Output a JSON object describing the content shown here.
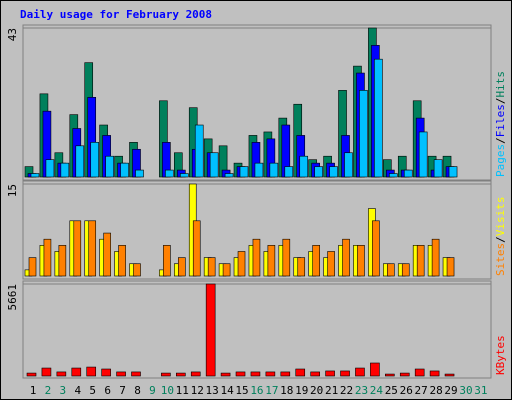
{
  "chart_data": [
    {
      "type": "bar",
      "title": "Daily usage for February 2008",
      "label_separator": "/",
      "ylim": [
        0,
        43
      ],
      "yticks": [
        43
      ],
      "series": [
        {
          "name": "Hits",
          "color": "#00805c",
          "values": [
            3,
            24,
            7,
            18,
            33,
            15,
            6,
            10,
            0,
            22,
            7,
            20,
            11,
            9,
            4,
            12,
            13,
            17,
            21,
            5,
            6,
            25,
            32,
            43,
            5,
            6,
            22,
            6,
            6,
            null,
            null
          ]
        },
        {
          "name": "Files",
          "color": "#0000ff",
          "values": [
            1,
            19,
            4,
            14,
            23,
            12,
            4,
            8,
            0,
            10,
            2,
            8,
            7,
            2,
            3,
            10,
            11,
            15,
            12,
            4,
            4,
            12,
            30,
            38,
            2,
            2,
            17,
            2,
            3,
            null,
            null
          ]
        },
        {
          "name": "Pages",
          "color": "#00c0ff",
          "values": [
            1,
            5,
            4,
            9,
            10,
            6,
            4,
            2,
            0,
            2,
            1,
            15,
            7,
            1,
            3,
            4,
            4,
            3,
            6,
            3,
            3,
            7,
            25,
            34,
            1,
            2,
            13,
            5,
            3,
            null,
            null
          ]
        }
      ]
    },
    {
      "type": "bar",
      "ylim": [
        0,
        15
      ],
      "yticks": [
        15
      ],
      "series": [
        {
          "name": "Visits",
          "color": "#ffff00",
          "values": [
            1,
            5,
            4,
            9,
            9,
            6,
            4,
            2,
            0,
            1,
            2,
            15,
            3,
            2,
            3,
            5,
            4,
            5,
            3,
            4,
            3,
            5,
            5,
            11,
            2,
            2,
            5,
            5,
            3,
            null,
            null
          ]
        },
        {
          "name": "Sites",
          "color": "#ff8000",
          "values": [
            3,
            6,
            5,
            9,
            9,
            7,
            5,
            2,
            0,
            5,
            3,
            9,
            3,
            2,
            4,
            6,
            5,
            6,
            3,
            5,
            4,
            6,
            5,
            9,
            2,
            2,
            5,
            6,
            3,
            null,
            null
          ]
        }
      ]
    },
    {
      "type": "bar",
      "ylim": [
        0,
        5661
      ],
      "yticks": [
        5661
      ],
      "categories": [
        "1",
        "2",
        "3",
        "4",
        "5",
        "6",
        "7",
        "8",
        "9",
        "10",
        "11",
        "12",
        "13",
        "14",
        "15",
        "16",
        "17",
        "18",
        "19",
        "20",
        "21",
        "22",
        "23",
        "24",
        "25",
        "26",
        "27",
        "28",
        "29",
        "30",
        "31"
      ],
      "category_colors": [
        "#000",
        "#00805c",
        "#00805c",
        "#000",
        "#000",
        "#000",
        "#000",
        "#000",
        "#00805c",
        "#00805c",
        "#000",
        "#000",
        "#000",
        "#000",
        "#000",
        "#00805c",
        "#00805c",
        "#000",
        "#000",
        "#000",
        "#000",
        "#000",
        "#00805c",
        "#00805c",
        "#000",
        "#000",
        "#000",
        "#000",
        "#000",
        "#00805c",
        "#00805c"
      ],
      "series": [
        {
          "name": "KBytes",
          "color": "#ff0000",
          "values": [
            180,
            490,
            250,
            490,
            550,
            430,
            250,
            250,
            0,
            180,
            180,
            250,
            5661,
            180,
            250,
            250,
            250,
            250,
            430,
            250,
            310,
            310,
            490,
            800,
            120,
            180,
            430,
            310,
            120,
            null,
            null
          ]
        }
      ]
    }
  ]
}
